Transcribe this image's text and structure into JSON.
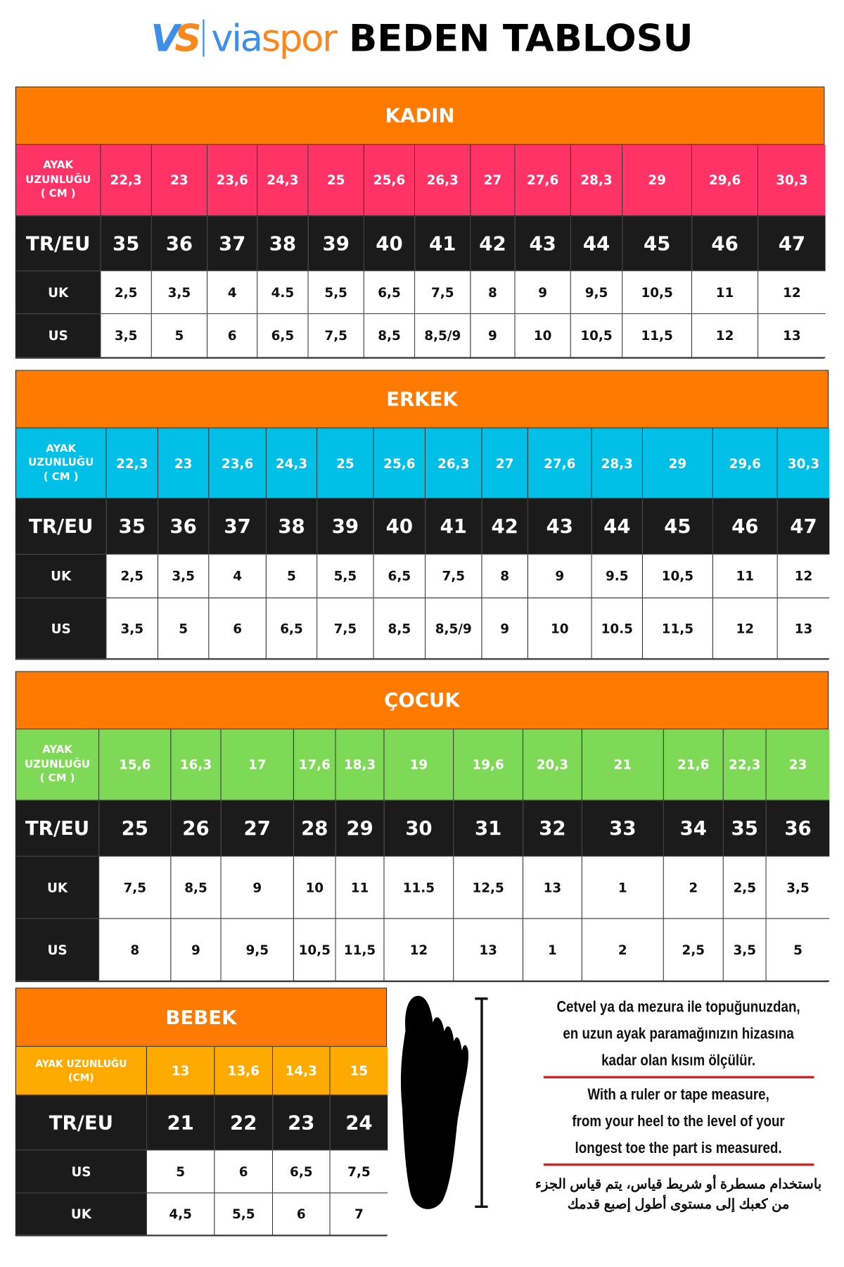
{
  "header": {
    "logo_mark": "VS",
    "brand_a": "via",
    "brand_b": "spor",
    "title": "BEDEN TABLOSU"
  },
  "colors": {
    "title_bar": "#FF7A00",
    "kadin": "#FF3366",
    "erkek": "#00C0E8",
    "cocuk": "#7ED957",
    "bebek": "#FFAA00",
    "dark": "#1B1B1B",
    "red_line": "#E02020"
  },
  "tables": [
    {
      "id": "kadin",
      "title": "KADIN",
      "rows": [
        {
          "type": "cm",
          "label": "AYAK\nUZUNLUĞU\n( CM )",
          "values": [
            "22,3",
            "23",
            "23,6",
            "24,3",
            "25",
            "25,6",
            "26,3",
            "27",
            "27,6",
            "28,3",
            "29",
            "29,6",
            "30,3"
          ]
        },
        {
          "type": "eu",
          "label": "TR/EU",
          "values": [
            "35",
            "36",
            "37",
            "38",
            "39",
            "40",
            "41",
            "42",
            "43",
            "44",
            "45",
            "46",
            "47"
          ]
        },
        {
          "type": "plain",
          "label": "UK",
          "values": [
            "2,5",
            "3,5",
            "4",
            "4.5",
            "5,5",
            "6,5",
            "7,5",
            "8",
            "9",
            "9,5",
            "10,5",
            "11",
            "12"
          ]
        },
        {
          "type": "plain",
          "label": "US",
          "values": [
            "3,5",
            "5",
            "6",
            "6,5",
            "7,5",
            "8,5",
            "8,5/9",
            "9",
            "10",
            "10,5",
            "11,5",
            "12",
            "13"
          ]
        }
      ]
    },
    {
      "id": "erkek",
      "title": "ERKEK",
      "rows": [
        {
          "type": "cm",
          "label": "AYAK\nUZUNLUĞU\n( CM )",
          "values": [
            "22,3",
            "23",
            "23,6",
            "24,3",
            "25",
            "25,6",
            "26,3",
            "27",
            "27,6",
            "28,3",
            "29",
            "29,6",
            "30,3"
          ]
        },
        {
          "type": "eu",
          "label": "TR/EU",
          "values": [
            "35",
            "36",
            "37",
            "38",
            "39",
            "40",
            "41",
            "42",
            "43",
            "44",
            "45",
            "46",
            "47"
          ]
        },
        {
          "type": "plain",
          "label": "UK",
          "values": [
            "2,5",
            "3,5",
            "4",
            "5",
            "5,5",
            "6,5",
            "7,5",
            "8",
            "9",
            "9.5",
            "10,5",
            "11",
            "12"
          ]
        },
        {
          "type": "plain",
          "label": "US",
          "values": [
            "3,5",
            "5",
            "6",
            "6,5",
            "7,5",
            "8,5",
            "8,5/9",
            "9",
            "10",
            "10.5",
            "11,5",
            "12",
            "13"
          ]
        }
      ]
    },
    {
      "id": "cocuk",
      "title": "ÇOCUK",
      "rows": [
        {
          "type": "cm",
          "label": "AYAK\nUZUNLUĞU\n( CM )",
          "values": [
            "15,6",
            "16,3",
            "17",
            "17,6",
            "18,3",
            "19",
            "19,6",
            "20,3",
            "21",
            "21,6",
            "22,3",
            "23"
          ]
        },
        {
          "type": "eu",
          "label": "TR/EU",
          "values": [
            "25",
            "26",
            "27",
            "28",
            "29",
            "30",
            "31",
            "32",
            "33",
            "34",
            "35",
            "36"
          ]
        },
        {
          "type": "plain",
          "label": "UK",
          "values": [
            "7,5",
            "8,5",
            "9",
            "10",
            "11",
            "11.5",
            "12,5",
            "13",
            "1",
            "2",
            "2,5",
            "3,5"
          ]
        },
        {
          "type": "plain",
          "label": "US",
          "values": [
            "8",
            "9",
            "9,5",
            "10,5",
            "11,5",
            "12",
            "13",
            "1",
            "2",
            "2,5",
            "3,5",
            "5"
          ]
        }
      ]
    },
    {
      "id": "bebek",
      "title": "BEBEK",
      "rows": [
        {
          "type": "cm",
          "label": "AYAK UZUNLUĞU\n(CM)",
          "values": [
            "13",
            "13,6",
            "14,3",
            "15"
          ]
        },
        {
          "type": "eu",
          "label": "TR/EU",
          "values": [
            "21",
            "22",
            "23",
            "24"
          ]
        },
        {
          "type": "plain",
          "label": "US",
          "values": [
            "5",
            "6",
            "6,5",
            "7,5"
          ]
        },
        {
          "type": "plain",
          "label": "UK",
          "values": [
            "4,5",
            "5,5",
            "6",
            "7"
          ]
        }
      ]
    }
  ],
  "instructions": {
    "tr": [
      "Cetvel ya da mezura ile topuğunuzdan,",
      "en uzun ayak paramağınızın hizasına",
      "kadar olan kısım ölçülür."
    ],
    "en": [
      "With a ruler or tape measure,",
      "from your heel to the level of your",
      "longest toe the part is measured."
    ],
    "ar": [
      "باستخدام مسطرة أو شريط قياس، يتم قياس الجزء",
      "من كعبك إلى مستوى أطول إصبع قدمك"
    ]
  },
  "icons": {
    "foot": "foot-silhouette-icon",
    "ruler": "measure-ruler-icon"
  }
}
